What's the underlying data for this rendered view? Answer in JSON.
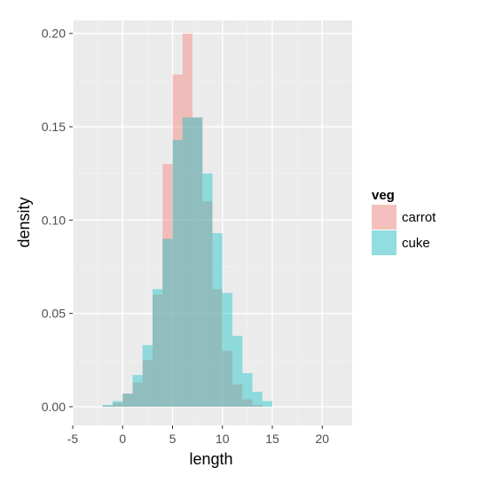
{
  "chart_data": {
    "type": "histogram",
    "xlabel": "length",
    "ylabel": "density",
    "xlim": [
      -5,
      23
    ],
    "ylim": [
      -0.01,
      0.207
    ],
    "x_ticks": [
      -5,
      0,
      5,
      10,
      15,
      20
    ],
    "y_ticks": [
      0.0,
      0.05,
      0.1,
      0.15,
      0.2
    ],
    "y_tick_labels": [
      "0.00",
      "0.05",
      "0.10",
      "0.15",
      "0.20"
    ],
    "grid": true,
    "legend": {
      "title": "veg",
      "position": "right"
    },
    "bin_width": 1,
    "series": [
      {
        "name": "carrot",
        "color": "#F8766D",
        "bins": [
          {
            "x0": -2,
            "x1": -1,
            "density": 0.0005
          },
          {
            "x0": -1,
            "x1": 0,
            "density": 0.002
          },
          {
            "x0": 0,
            "x1": 1,
            "density": 0.007
          },
          {
            "x0": 1,
            "x1": 2,
            "density": 0.013
          },
          {
            "x0": 2,
            "x1": 3,
            "density": 0.025
          },
          {
            "x0": 3,
            "x1": 4,
            "density": 0.06
          },
          {
            "x0": 4,
            "x1": 5,
            "density": 0.13
          },
          {
            "x0": 5,
            "x1": 6,
            "density": 0.178
          },
          {
            "x0": 6,
            "x1": 7,
            "density": 0.2
          },
          {
            "x0": 7,
            "x1": 8,
            "density": 0.155
          },
          {
            "x0": 8,
            "x1": 9,
            "density": 0.11
          },
          {
            "x0": 9,
            "x1": 10,
            "density": 0.063
          },
          {
            "x0": 10,
            "x1": 11,
            "density": 0.03
          },
          {
            "x0": 11,
            "x1": 12,
            "density": 0.012
          },
          {
            "x0": 12,
            "x1": 13,
            "density": 0.004
          },
          {
            "x0": 13,
            "x1": 14,
            "density": 0.001
          }
        ]
      },
      {
        "name": "cuke",
        "color": "#00BFC4",
        "bins": [
          {
            "x0": -2,
            "x1": -1,
            "density": 0.001
          },
          {
            "x0": -1,
            "x1": 0,
            "density": 0.003
          },
          {
            "x0": 0,
            "x1": 1,
            "density": 0.007
          },
          {
            "x0": 1,
            "x1": 2,
            "density": 0.017
          },
          {
            "x0": 2,
            "x1": 3,
            "density": 0.033
          },
          {
            "x0": 3,
            "x1": 4,
            "density": 0.063
          },
          {
            "x0": 4,
            "x1": 5,
            "density": 0.09
          },
          {
            "x0": 5,
            "x1": 6,
            "density": 0.143
          },
          {
            "x0": 6,
            "x1": 7,
            "density": 0.155
          },
          {
            "x0": 7,
            "x1": 8,
            "density": 0.155
          },
          {
            "x0": 8,
            "x1": 9,
            "density": 0.125
          },
          {
            "x0": 9,
            "x1": 10,
            "density": 0.093
          },
          {
            "x0": 10,
            "x1": 11,
            "density": 0.061
          },
          {
            "x0": 11,
            "x1": 12,
            "density": 0.038
          },
          {
            "x0": 12,
            "x1": 13,
            "density": 0.018
          },
          {
            "x0": 13,
            "x1": 14,
            "density": 0.008
          },
          {
            "x0": 14,
            "x1": 15,
            "density": 0.003
          }
        ]
      }
    ]
  }
}
